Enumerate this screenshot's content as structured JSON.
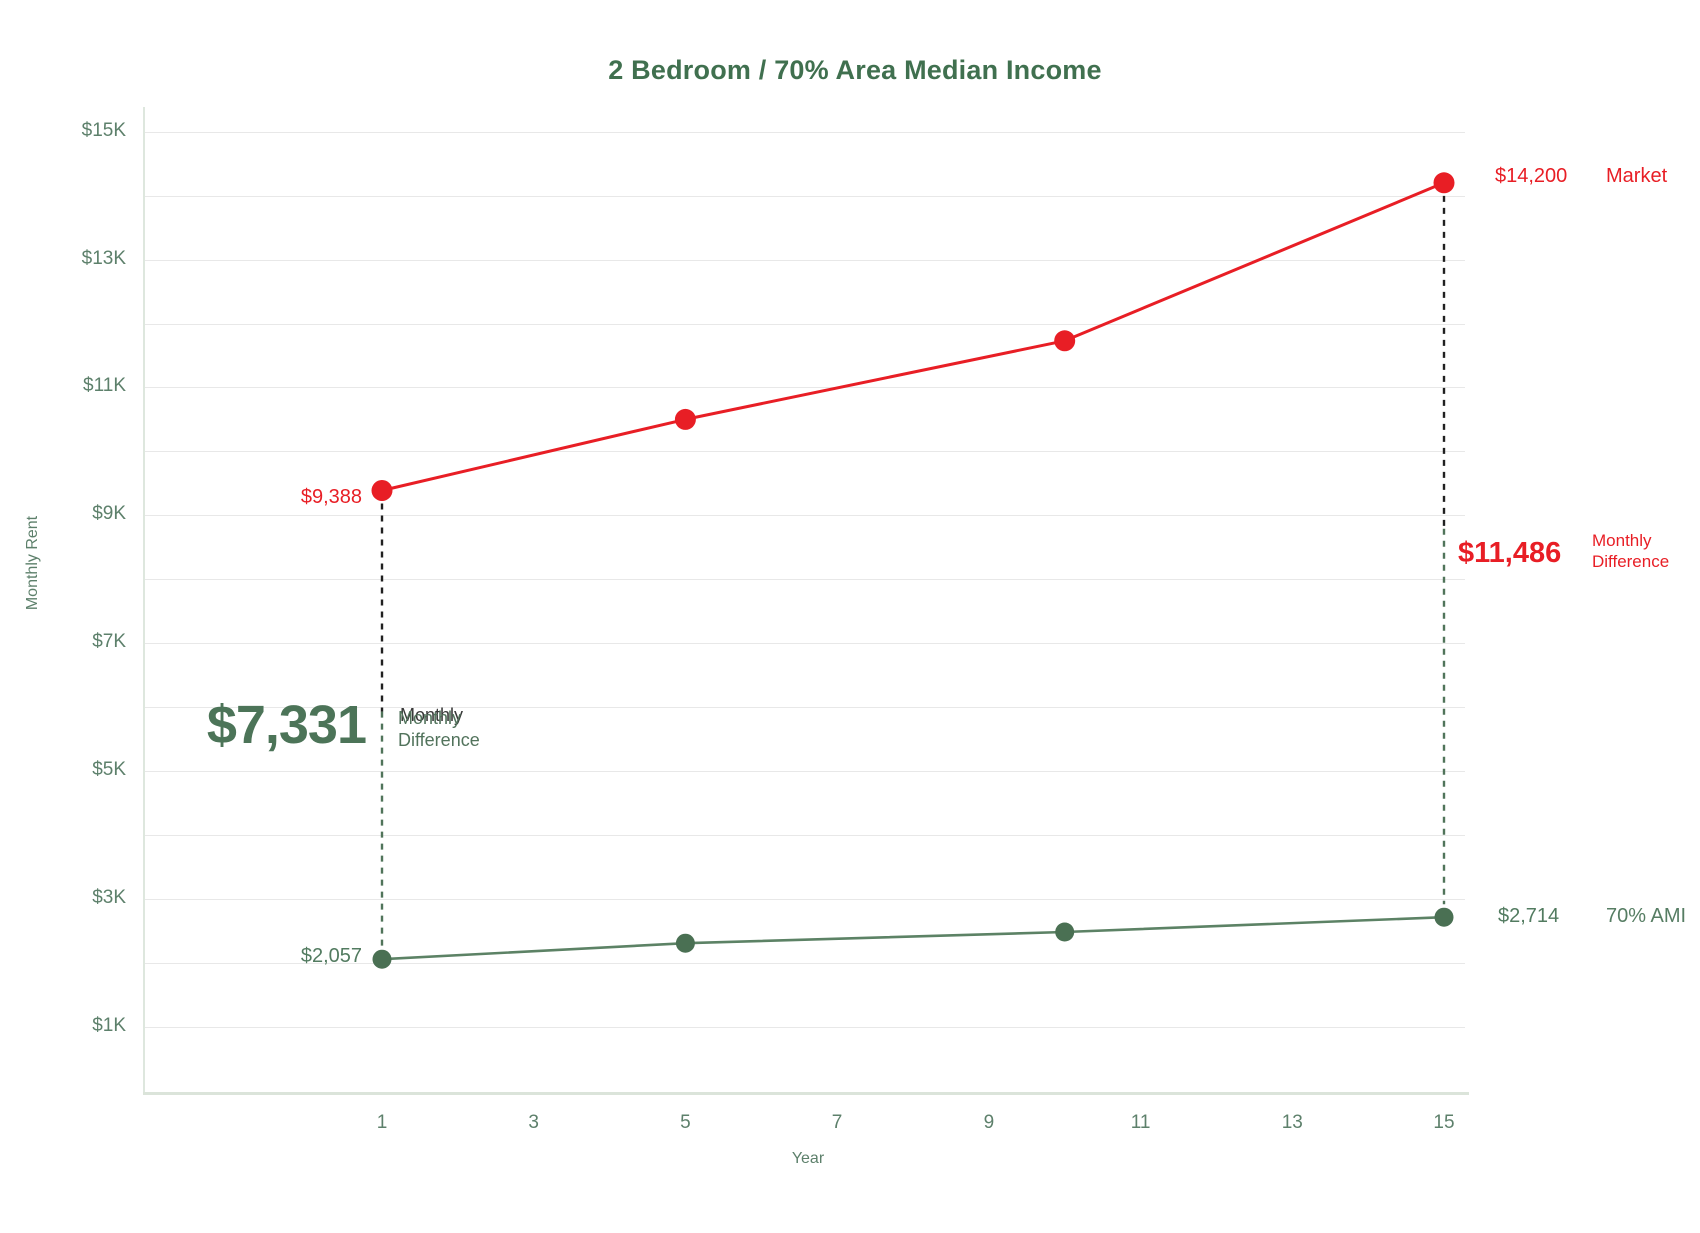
{
  "title": "2 Bedroom / 70% Area Median Income",
  "axes": {
    "x_label": "Year",
    "y_label": "Monthly Rent",
    "x_ticks": [
      1,
      3,
      5,
      7,
      9,
      11,
      13,
      15
    ],
    "y_ticks": [
      {
        "label": "$1K",
        "value": 1000
      },
      {
        "label": "$3K",
        "value": 3000
      },
      {
        "label": "$5K",
        "value": 5000
      },
      {
        "label": "$7K",
        "value": 7000
      },
      {
        "label": "$9K",
        "value": 9000
      },
      {
        "label": "$11K",
        "value": 11000
      },
      {
        "label": "$13K",
        "value": 13000
      },
      {
        "label": "$15K",
        "value": 15000
      }
    ]
  },
  "chart_data": {
    "type": "line",
    "title": "2 Bedroom / 70% Area Median Income",
    "xlabel": "Year",
    "ylabel": "Monthly Rent",
    "x": [
      1,
      5,
      10,
      15
    ],
    "series": [
      {
        "name": "Market",
        "color": "#e81e25",
        "marker_color": "#e81e25",
        "values": [
          9388,
          10500,
          11730,
          14200
        ]
      },
      {
        "name": "70% AMI",
        "color": "#5c8265",
        "marker_color": "#4a7053",
        "values": [
          2057,
          2308,
          2482,
          2714
        ]
      }
    ],
    "ylim": [
      0,
      15300
    ],
    "xlim": [
      -2.1,
      15.3
    ],
    "grid": "horizontal minor every $1K, labeled every $2K",
    "legend_position": "inline right of last points",
    "minor_grid_step": 1000,
    "difference_markers": [
      {
        "year": 1,
        "between": [
          "Market",
          "70% AMI"
        ],
        "value_label": "$7,331",
        "text": "Monthly Difference"
      },
      {
        "year": 15,
        "between": [
          "Market",
          "70% AMI"
        ],
        "value_label": "$11,486",
        "text": "Monthly Difference"
      }
    ]
  },
  "annotations": {
    "market_first_value": "$9,388",
    "market_last_value": "$14,200",
    "market_series_label": "Market",
    "ami_first_value": "$2,057",
    "ami_last_value": "$2,714",
    "ami_series_label": "70% AMI",
    "diff_year1_value": "$7,331",
    "diff_year1_line1": "Monthly",
    "diff_year1_line2": "Difference",
    "diff_year15_value": "$11,486",
    "diff_year15_line1": "Monthly",
    "diff_year15_line2": "Difference"
  },
  "colors": {
    "market_red": "#e81e25",
    "ami_green_line": "#5c8265",
    "ami_green_marker": "#4a7053",
    "title_green": "#40704f",
    "tick_green": "#5d806b",
    "big_diff_green": "#4c7458",
    "gridline_gray": "#e8e8e8",
    "axis_line": "#dee7de",
    "connector_dark": "#202020",
    "connector_green": "#50745a",
    "background": "#ffffff"
  }
}
